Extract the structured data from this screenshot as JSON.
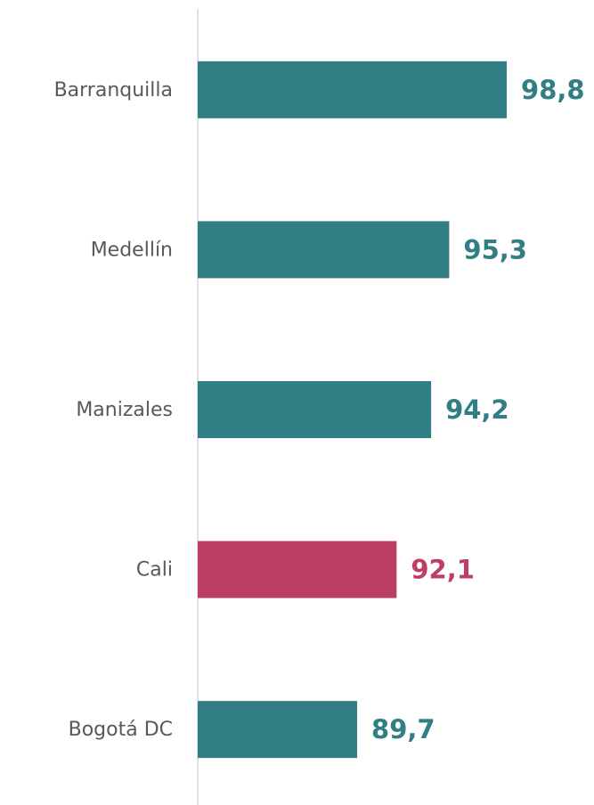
{
  "chart_data": {
    "type": "barh",
    "categories": [
      "Barranquilla",
      "Medellín",
      "Manizales",
      "Cali",
      "Bogotá DC"
    ],
    "values": [
      98.8,
      95.3,
      94.2,
      92.1,
      89.7
    ],
    "value_labels": [
      "98,8",
      "95,3",
      "94,2",
      "92,1",
      "89,7"
    ],
    "colors": [
      "#317f85",
      "#317f85",
      "#317f85",
      "#bc3f64",
      "#317f85"
    ],
    "xlim": [
      80,
      104
    ]
  }
}
